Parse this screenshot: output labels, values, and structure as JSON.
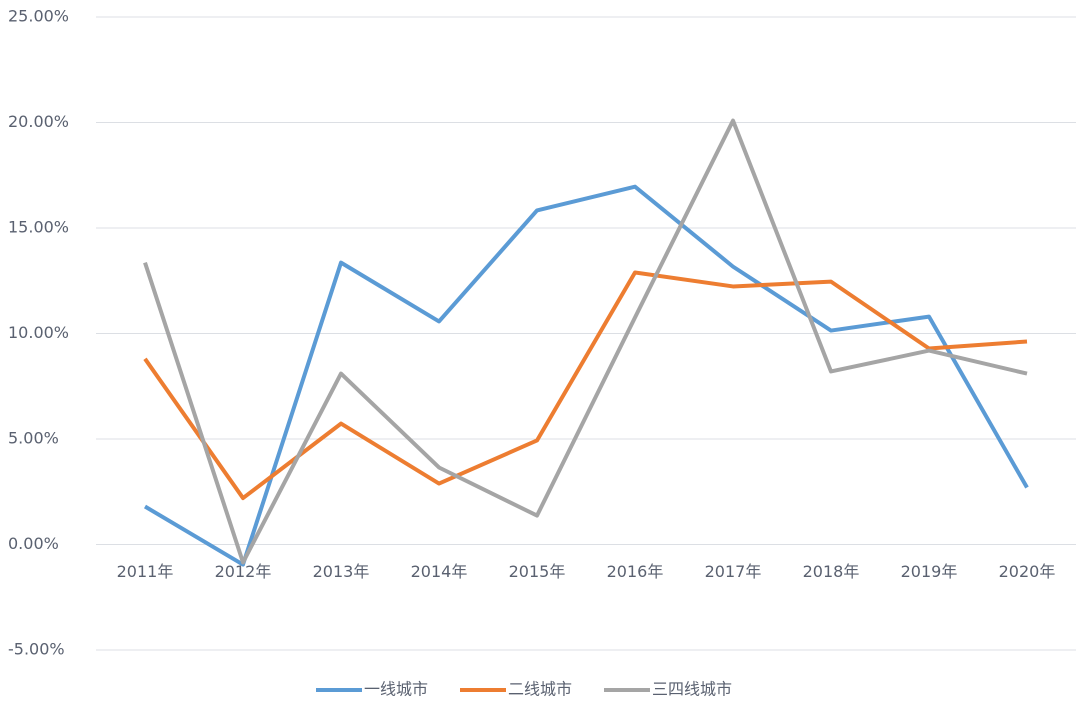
{
  "chart_data": {
    "type": "line",
    "categories": [
      "2011年",
      "2012年",
      "2013年",
      "2014年",
      "2015年",
      "2016年",
      "2017年",
      "2018年",
      "2019年",
      "2020年"
    ],
    "series": [
      {
        "name": "一线城市",
        "color": "#5b9bd5",
        "values": [
          1.8,
          -0.95,
          13.36,
          10.57,
          15.83,
          16.96,
          13.17,
          10.14,
          10.8,
          2.7
        ]
      },
      {
        "name": "二线城市",
        "color": "#ed7d31",
        "values": [
          8.8,
          2.2,
          5.73,
          2.89,
          4.93,
          12.89,
          12.23,
          12.46,
          9.29,
          9.62
        ]
      },
      {
        "name": "三四线城市",
        "color": "#a5a5a5",
        "values": [
          13.36,
          -0.85,
          8.1,
          3.65,
          1.37,
          10.76,
          20.09,
          8.2,
          9.19,
          8.1
        ]
      }
    ],
    "ylim": [
      -5,
      25
    ],
    "yticks": [
      {
        "value": -5,
        "label": "-5.00%"
      },
      {
        "value": 0,
        "label": "0.00%"
      },
      {
        "value": 5,
        "label": "5.00%"
      },
      {
        "value": 10,
        "label": "10.00%"
      },
      {
        "value": 15,
        "label": "15.00%"
      },
      {
        "value": 20,
        "label": "20.00%"
      },
      {
        "value": 25,
        "label": "25.00%"
      }
    ],
    "grid": true,
    "legend": "bottom"
  }
}
